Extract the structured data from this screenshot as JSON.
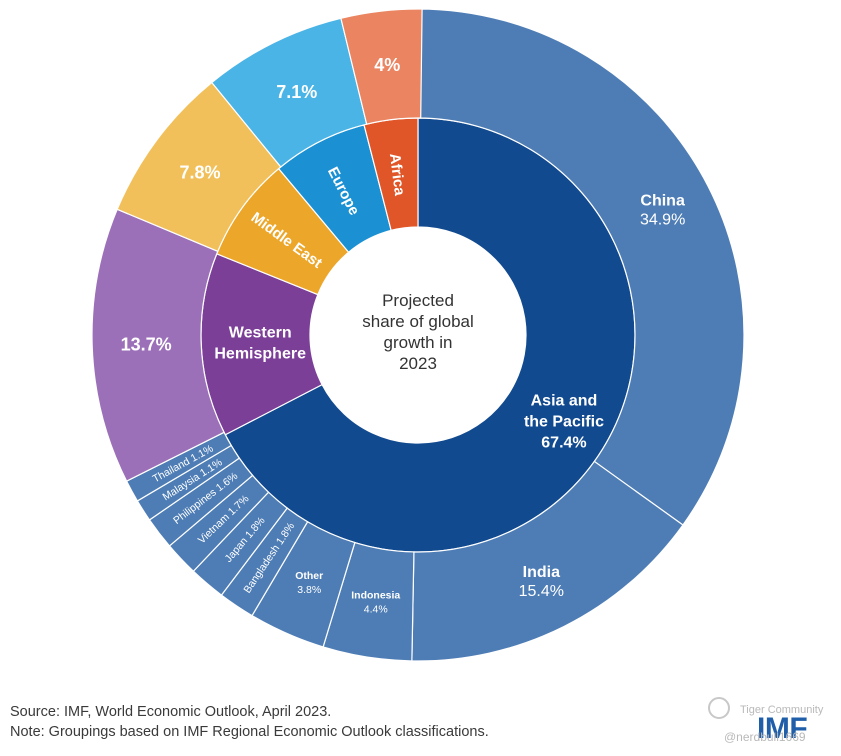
{
  "chart_data": {
    "type": "sunburst-donut",
    "center_label": [
      "Projected",
      "share of global",
      "growth in",
      "2023"
    ],
    "inner_ring": [
      {
        "name": "Asia and the Pacific",
        "value": 67.4,
        "value_label": "67.4%",
        "color": "#124a8f",
        "label_lines": [
          "Asia and",
          "the Pacific",
          "67.4%"
        ]
      },
      {
        "name": "Western Hemisphere",
        "value": 13.7,
        "color": "#7b3f98",
        "label_lines": [
          "Western",
          "Hemisphere"
        ]
      },
      {
        "name": "Middle East",
        "value": 7.8,
        "color": "#eca72a",
        "label_lines": [
          "Middle East"
        ]
      },
      {
        "name": "Europe",
        "value": 7.1,
        "color": "#1b91d3",
        "label_lines": [
          "Europe"
        ]
      },
      {
        "name": "Africa",
        "value": 4.0,
        "color": "#e05628",
        "label_lines": [
          "Africa"
        ]
      }
    ],
    "outer_ring": [
      {
        "name": "China",
        "value": 34.9,
        "label": "34.9%",
        "parent": "Asia and the Pacific",
        "color": "#4e7db5"
      },
      {
        "name": "India",
        "value": 15.4,
        "label": "15.4%",
        "parent": "Asia and the Pacific",
        "color": "#4e7db5"
      },
      {
        "name": "Indonesia",
        "value": 4.4,
        "label": "4.4%",
        "parent": "Asia and the Pacific",
        "color": "#4e7db5"
      },
      {
        "name": "Other",
        "value": 3.8,
        "label": "3.8%",
        "parent": "Asia and the Pacific",
        "color": "#4e7db5"
      },
      {
        "name": "Bangladesh",
        "value": 1.8,
        "label": "1.8%",
        "parent": "Asia and the Pacific",
        "color": "#4e7db5"
      },
      {
        "name": "Japan",
        "value": 1.8,
        "label": "1.8%",
        "parent": "Asia and the Pacific",
        "color": "#4e7db5"
      },
      {
        "name": "Vietnam",
        "value": 1.7,
        "label": "1.7%",
        "parent": "Asia and the Pacific",
        "color": "#4e7db5"
      },
      {
        "name": "Philippines",
        "value": 1.6,
        "label": "1.6%",
        "parent": "Asia and the Pacific",
        "color": "#4e7db5"
      },
      {
        "name": "Malaysia",
        "value": 1.1,
        "label": "1.1%",
        "parent": "Asia and the Pacific",
        "color": "#4e7db5"
      },
      {
        "name": "Thailand",
        "value": 1.1,
        "label": "1.1%",
        "parent": "Asia and the Pacific",
        "color": "#4e7db5"
      },
      {
        "name": "Western Hemisphere",
        "value": 13.7,
        "label": "13.7%",
        "parent": "Western Hemisphere",
        "color": "#9b70b8"
      },
      {
        "name": "Middle East",
        "value": 7.8,
        "label": "7.8%",
        "parent": "Middle East",
        "color": "#f2c05a"
      },
      {
        "name": "Europe",
        "value": 7.1,
        "label": "7.1%",
        "parent": "Europe",
        "color": "#4ab4e6"
      },
      {
        "name": "Africa",
        "value": 4.0,
        "label": "4%",
        "parent": "Africa",
        "color": "#ea8461"
      }
    ]
  },
  "footer": {
    "source": "Source: IMF, World Economic Outlook, April 2023.",
    "note": "Note: Groupings based on IMF Regional Economic Outlook classifications."
  },
  "logo": "IMF",
  "watermark": {
    "community": "Tiger Community",
    "handle": "@nerdbull1669"
  }
}
